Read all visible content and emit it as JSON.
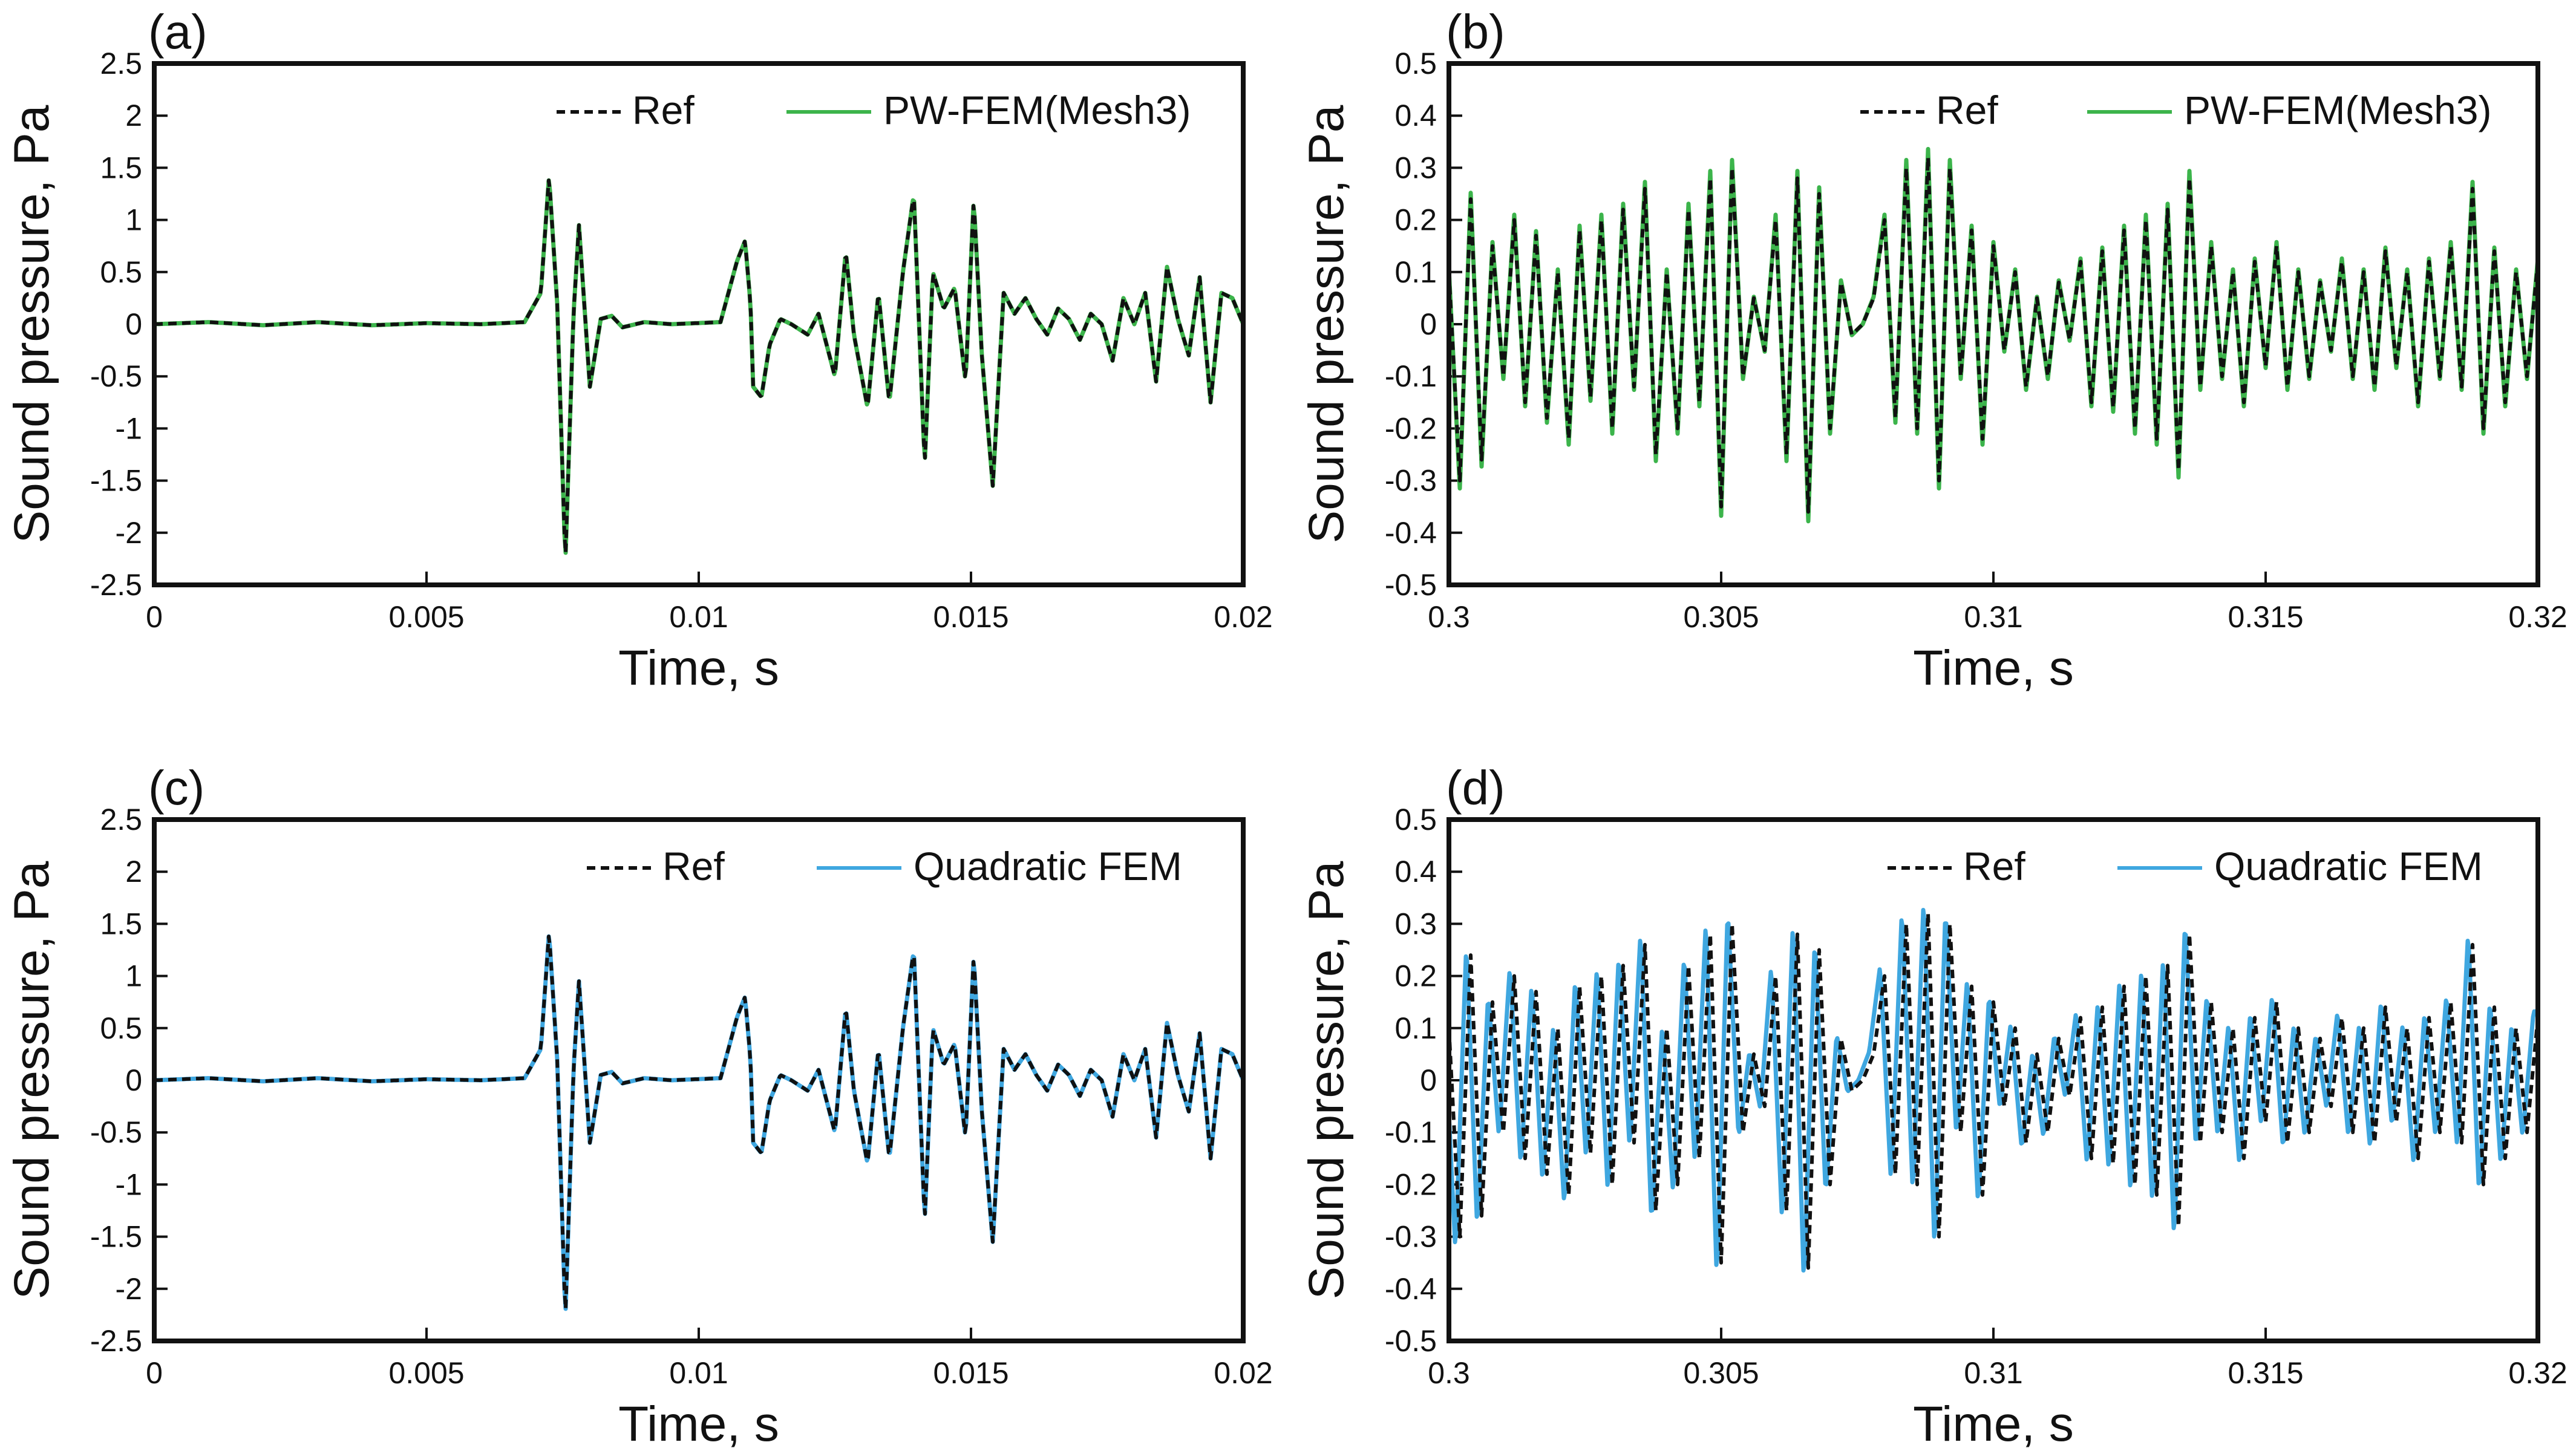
{
  "figure": {
    "description_labels": [
      "(a)",
      "(b)",
      "(c)",
      "(d)"
    ]
  },
  "colors": {
    "ref": "#111111",
    "pwfem": "#3cb44b",
    "quadratic": "#3fa7e0"
  },
  "chart_data": [
    {
      "panel": "(a)",
      "type": "line",
      "xlabel": "Time, s",
      "ylabel": "Sound pressure, Pa",
      "xlim": [
        0,
        0.02
      ],
      "ylim": [
        -2.5,
        2.5
      ],
      "xticks": [
        0,
        0.005,
        0.01,
        0.015,
        0.02
      ],
      "xtick_labels": [
        "0",
        "0.005",
        "0.01",
        "0.015",
        "0.02"
      ],
      "yticks": [
        -2.5,
        -2,
        -1.5,
        -1,
        -0.5,
        0,
        0.5,
        1,
        1.5,
        2,
        2.5
      ],
      "ytick_labels": [
        "-2.5",
        "-2",
        "-1.5",
        "-1",
        "-0.5",
        "0",
        "0.5",
        "1",
        "1.5",
        "2",
        "2.5"
      ],
      "legend_position": "top-right",
      "series": [
        {
          "name": "Ref",
          "style": "dashed",
          "color": "#111111",
          "x": [
            0,
            0.001,
            0.002,
            0.003,
            0.004,
            0.005,
            0.006,
            0.0068,
            0.0071,
            0.00725,
            0.0074,
            0.00755,
            0.0077,
            0.0078,
            0.008,
            0.0082,
            0.0084,
            0.0086,
            0.009,
            0.0095,
            0.0104,
            0.0107,
            0.01085,
            0.01095,
            0.011,
            0.01115,
            0.0113,
            0.0115,
            0.0117,
            0.012,
            0.0122,
            0.0125,
            0.0127,
            0.01285,
            0.0131,
            0.0133,
            0.0135,
            0.01375,
            0.01395,
            0.01415,
            0.0143,
            0.0145,
            0.0147,
            0.0149,
            0.01505,
            0.0152,
            0.0154,
            0.0156,
            0.0158,
            0.016,
            0.0162,
            0.0164,
            0.0166,
            0.0168,
            0.017,
            0.0172,
            0.0174,
            0.0176,
            0.0178,
            0.018,
            0.0182,
            0.0184,
            0.0186,
            0.0188,
            0.019,
            0.0192,
            0.0194,
            0.0196,
            0.0198,
            0.02
          ],
          "y": [
            0,
            0.02,
            -0.01,
            0.02,
            -0.01,
            0.01,
            0,
            0.02,
            0.3,
            1.42,
            0.2,
            -2.28,
            0.1,
            0.95,
            -0.6,
            0.05,
            0.08,
            -0.03,
            0.02,
            0,
            0.02,
            0.6,
            0.8,
            0.2,
            -0.6,
            -0.7,
            -0.2,
            0.05,
            0,
            -0.1,
            0.1,
            -0.5,
            0.7,
            -0.1,
            -0.8,
            0.3,
            -0.75,
            0.5,
            1.25,
            -1.35,
            0.5,
            0.15,
            0.35,
            -0.55,
            1.2,
            -0.3,
            -1.55,
            0.3,
            0.1,
            0.25,
            0.05,
            -0.1,
            0.15,
            0.05,
            -0.15,
            0.1,
            0.0,
            -0.35,
            0.25,
            0.0,
            0.3,
            -0.55,
            0.55,
            0.05,
            -0.3,
            0.45,
            -0.75,
            0.3,
            0.25,
            0.0
          ]
        },
        {
          "name": "PW-FEM(Mesh3)",
          "style": "solid",
          "color": "#3cb44b"
        }
      ]
    },
    {
      "panel": "(b)",
      "type": "line",
      "xlabel": "Time, s",
      "ylabel": "Sound pressure, Pa",
      "xlim": [
        0.3,
        0.32
      ],
      "ylim": [
        -0.5,
        0.5
      ],
      "xticks": [
        0.3,
        0.305,
        0.31,
        0.315,
        0.32
      ],
      "xtick_labels": [
        "0.3",
        "0.305",
        "0.31",
        "0.315",
        "0.32"
      ],
      "yticks": [
        -0.5,
        -0.4,
        -0.3,
        -0.2,
        -0.1,
        0,
        0.1,
        0.2,
        0.3,
        0.4,
        0.5
      ],
      "ytick_labels": [
        "-0.5",
        "-0.4",
        "-0.3",
        "-0.2",
        "-0.1",
        "0",
        "0.1",
        "0.2",
        "0.3",
        "0.4",
        "0.5"
      ],
      "legend_position": "top-right",
      "series": [
        {
          "name": "Ref",
          "style": "dashed",
          "color": "#111111",
          "x": [
            0.3,
            0.3002,
            0.3004,
            0.3006,
            0.3008,
            0.301,
            0.3012,
            0.3014,
            0.3016,
            0.3018,
            0.302,
            0.3022,
            0.3024,
            0.3026,
            0.3028,
            0.303,
            0.3032,
            0.3034,
            0.3036,
            0.3038,
            0.304,
            0.3042,
            0.3044,
            0.3046,
            0.3048,
            0.305,
            0.3052,
            0.3054,
            0.3056,
            0.3058,
            0.306,
            0.3062,
            0.3064,
            0.3066,
            0.3068,
            0.307,
            0.3072,
            0.3074,
            0.3076,
            0.3078,
            0.308,
            0.3082,
            0.3084,
            0.3086,
            0.3088,
            0.309,
            0.3092,
            0.3094,
            0.3096,
            0.3098,
            0.31,
            0.3102,
            0.3104,
            0.3106,
            0.3108,
            0.311,
            0.3112,
            0.3114,
            0.3116,
            0.3118,
            0.312,
            0.3122,
            0.3124,
            0.3126,
            0.3128,
            0.313,
            0.3132,
            0.3134,
            0.3136,
            0.3138,
            0.314,
            0.3142,
            0.3144,
            0.3146,
            0.3148,
            0.315,
            0.3152,
            0.3154,
            0.3156,
            0.3158,
            0.316,
            0.3162,
            0.3164,
            0.3166,
            0.3168,
            0.317,
            0.3172,
            0.3174,
            0.3176,
            0.3178,
            0.318,
            0.3182,
            0.3184,
            0.3186,
            0.3188,
            0.319,
            0.3192,
            0.3194,
            0.3196,
            0.3198,
            0.32
          ],
          "y": [
            0.1,
            -0.3,
            0.24,
            -0.26,
            0.15,
            -0.1,
            0.2,
            -0.15,
            0.17,
            -0.18,
            0.1,
            -0.22,
            0.18,
            -0.14,
            0.2,
            -0.2,
            0.22,
            -0.12,
            0.26,
            -0.25,
            0.1,
            -0.2,
            0.22,
            -0.15,
            0.28,
            -0.35,
            0.3,
            -0.1,
            0.05,
            -0.05,
            0.2,
            -0.25,
            0.28,
            -0.36,
            0.25,
            -0.2,
            0.08,
            -0.02,
            0.0,
            0.05,
            0.2,
            -0.18,
            0.3,
            -0.2,
            0.32,
            -0.3,
            0.3,
            -0.1,
            0.18,
            -0.22,
            0.15,
            -0.05,
            0.1,
            -0.12,
            0.05,
            -0.1,
            0.08,
            -0.03,
            0.12,
            -0.15,
            0.14,
            -0.16,
            0.18,
            -0.2,
            0.2,
            -0.22,
            0.22,
            -0.28,
            0.28,
            -0.12,
            0.15,
            -0.1,
            0.1,
            -0.15,
            0.12,
            -0.08,
            0.15,
            -0.12,
            0.1,
            -0.1,
            0.08,
            -0.05,
            0.12,
            -0.1,
            0.1,
            -0.12,
            0.14,
            -0.08,
            0.1,
            -0.15,
            0.12,
            -0.1,
            0.15,
            -0.12,
            0.26,
            -0.2,
            0.14,
            -0.15,
            0.1,
            -0.1,
            0.12
          ]
        },
        {
          "name": "PW-FEM(Mesh3)",
          "style": "solid",
          "color": "#3cb44b"
        }
      ]
    },
    {
      "panel": "(c)",
      "type": "line",
      "xlabel": "Time, s",
      "ylabel": "Sound pressure, Pa",
      "xlim": [
        0,
        0.02
      ],
      "ylim": [
        -2.5,
        2.5
      ],
      "xticks": [
        0,
        0.005,
        0.01,
        0.015,
        0.02
      ],
      "xtick_labels": [
        "0",
        "0.005",
        "0.01",
        "0.015",
        "0.02"
      ],
      "yticks": [
        -2.5,
        -2,
        -1.5,
        -1,
        -0.5,
        0,
        0.5,
        1,
        1.5,
        2,
        2.5
      ],
      "ytick_labels": [
        "-2.5",
        "-2",
        "-1.5",
        "-1",
        "-0.5",
        "0",
        "0.5",
        "1",
        "1.5",
        "2",
        "2.5"
      ],
      "legend_position": "top-right",
      "series": [
        {
          "name": "Ref",
          "style": "dashed",
          "color": "#111111"
        },
        {
          "name": "Quadratic FEM",
          "style": "solid",
          "color": "#3fa7e0"
        }
      ]
    },
    {
      "panel": "(d)",
      "type": "line",
      "xlabel": "Time, s",
      "ylabel": "Sound pressure, Pa",
      "xlim": [
        0.3,
        0.32
      ],
      "ylim": [
        -0.5,
        0.5
      ],
      "xticks": [
        0.3,
        0.305,
        0.31,
        0.315,
        0.32
      ],
      "xtick_labels": [
        "0.3",
        "0.305",
        "0.31",
        "0.315",
        "0.32"
      ],
      "yticks": [
        -0.5,
        -0.4,
        -0.3,
        -0.2,
        -0.1,
        0,
        0.1,
        0.2,
        0.3,
        0.4,
        0.5
      ],
      "ytick_labels": [
        "-0.5",
        "-0.4",
        "-0.3",
        "-0.2",
        "-0.1",
        "0",
        "0.1",
        "0.2",
        "0.3",
        "0.4",
        "0.5"
      ],
      "legend_position": "top-right",
      "series": [
        {
          "name": "Ref",
          "style": "dashed",
          "color": "#111111"
        },
        {
          "name": "Quadratic FEM",
          "style": "solid",
          "color": "#3fa7e0",
          "y_scale": 1.1,
          "x_shift": -8e-05
        }
      ]
    }
  ]
}
